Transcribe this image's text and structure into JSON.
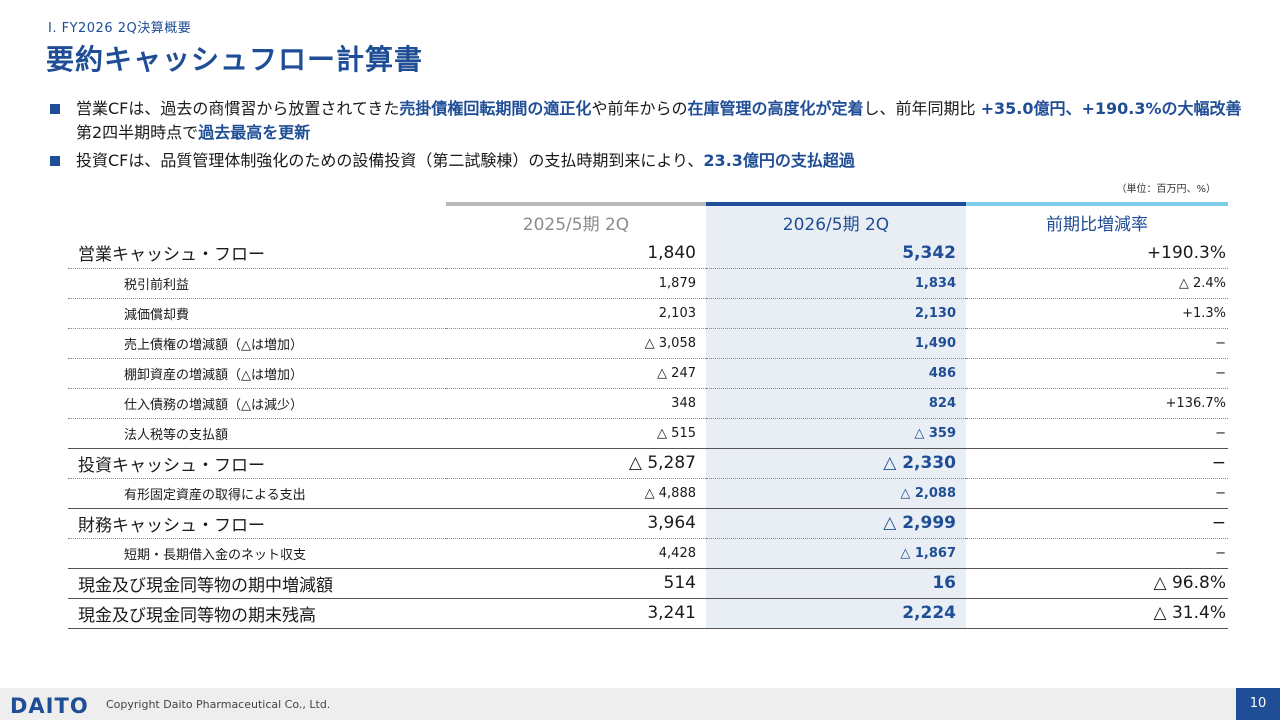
{
  "header": {
    "section": "Ⅰ. FY2026 2Q決算概要",
    "title": "要約キャッシュフロー計算書"
  },
  "bullets": [
    {
      "segments": [
        {
          "text": "営業CFは、過去の商慣習から放置されてきた",
          "em": false
        },
        {
          "text": "売掛債権回転期間の適正化",
          "em": true
        },
        {
          "text": "や前年からの",
          "em": false
        },
        {
          "text": "在庫管理の高度化が定着",
          "em": true
        },
        {
          "text": "し、前年同期比 ",
          "em": false
        },
        {
          "text": "+35.0億円、+190.3%の大幅改善",
          "em": true
        },
        {
          "text": "　第2四半期時点で",
          "em": false
        },
        {
          "text": "過去最高を更新",
          "em": true
        }
      ]
    },
    {
      "segments": [
        {
          "text": "投資CFは、品質管理体制強化のための設備投資（第二試験棟）の支払時期到来により、",
          "em": false
        },
        {
          "text": "23.3億円の支払超過",
          "em": true
        }
      ]
    }
  ],
  "unit_note": "（単位：百万円、%）",
  "table": {
    "headers": {
      "prev": "2025/5期 2Q",
      "curr": "2026/5期 2Q",
      "rate": "前期比増減率"
    },
    "rows": [
      {
        "level": "major",
        "label": "営業キャッシュ・フロー",
        "prev": "1,840",
        "curr": "5,342",
        "rate": "+190.3%"
      },
      {
        "level": "minor",
        "label": "税引前利益",
        "prev": "1,879",
        "curr": "1,834",
        "rate": "△ 2.4%"
      },
      {
        "level": "minor",
        "label": "減価償却費",
        "prev": "2,103",
        "curr": "2,130",
        "rate": "+1.3%"
      },
      {
        "level": "minor",
        "label": "売上債権の増減額（△は増加）",
        "prev": "△ 3,058",
        "curr": "1,490",
        "rate": "−"
      },
      {
        "level": "minor",
        "label": "棚卸資産の増減額（△は増加）",
        "prev": "△ 247",
        "curr": "486",
        "rate": "−"
      },
      {
        "level": "minor",
        "label": "仕入債務の増減額（△は減少）",
        "prev": "348",
        "curr": "824",
        "rate": "+136.7%"
      },
      {
        "level": "minor",
        "label": "法人税等の支払額",
        "prev": "△ 515",
        "curr": "△ 359",
        "rate": "−"
      },
      {
        "level": "major",
        "label": "投資キャッシュ・フロー",
        "prev": "△ 5,287",
        "curr": "△ 2,330",
        "rate": "−"
      },
      {
        "level": "minor",
        "label": "有形固定資産の取得による支出",
        "prev": "△ 4,888",
        "curr": "△ 2,088",
        "rate": "−"
      },
      {
        "level": "major",
        "label": "財務キャッシュ・フロー",
        "prev": "3,964",
        "curr": "△ 2,999",
        "rate": "−"
      },
      {
        "level": "minor",
        "label": "短期・長期借入金のネット収支",
        "prev": "4,428",
        "curr": "△ 1,867",
        "rate": "−"
      },
      {
        "level": "major",
        "label": "現金及び現金同等物の期中増減額",
        "prev": "514",
        "curr": "16",
        "rate": "△ 96.8%"
      },
      {
        "level": "major",
        "label": "現金及び現金同等物の期末残高",
        "prev": "3,241",
        "curr": "2,224",
        "rate": "△ 31.4%"
      }
    ]
  },
  "footer": {
    "logo": "DAITO",
    "copyright": "Copyright  Daito Pharmaceutical Co., Ltd.",
    "page_number": "10"
  },
  "colors": {
    "accent": "#1f4e96",
    "header_prev_bar": "#b8b8b8",
    "header_rate_bar": "#7fcdea",
    "current_column_bg": "#e9eef5"
  }
}
